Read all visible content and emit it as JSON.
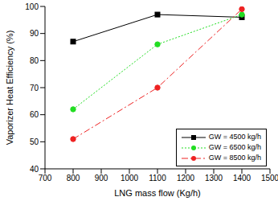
{
  "chart_data": {
    "type": "line",
    "x_label": "LNG mass flow (Kg/h)",
    "y_label": "Vaporizer Heat Efficiency (%)",
    "x": [
      800,
      1100,
      1400
    ],
    "xlim": [
      700,
      1500
    ],
    "xticks": [
      700,
      800,
      900,
      1000,
      1100,
      1200,
      1300,
      1400,
      1500
    ],
    "ylim": [
      40,
      100
    ],
    "yticks": [
      40,
      50,
      60,
      70,
      80,
      90,
      100
    ],
    "grid": false,
    "legend": "lower right",
    "series": [
      {
        "name": "GW = 4500 kg/h",
        "color": "#000000",
        "marker": "square",
        "line_style": "solid",
        "values": [
          87,
          97,
          96
        ]
      },
      {
        "name": "GW = 6500 kg/h",
        "color": "#22dd22",
        "marker": "circle",
        "line_style": "dotted",
        "values": [
          62,
          86,
          97
        ]
      },
      {
        "name": "GW = 8500 kg/h",
        "color": "#ee2222",
        "marker": "circle",
        "line_style": "dashdot",
        "values": [
          51,
          70,
          99
        ]
      }
    ]
  }
}
